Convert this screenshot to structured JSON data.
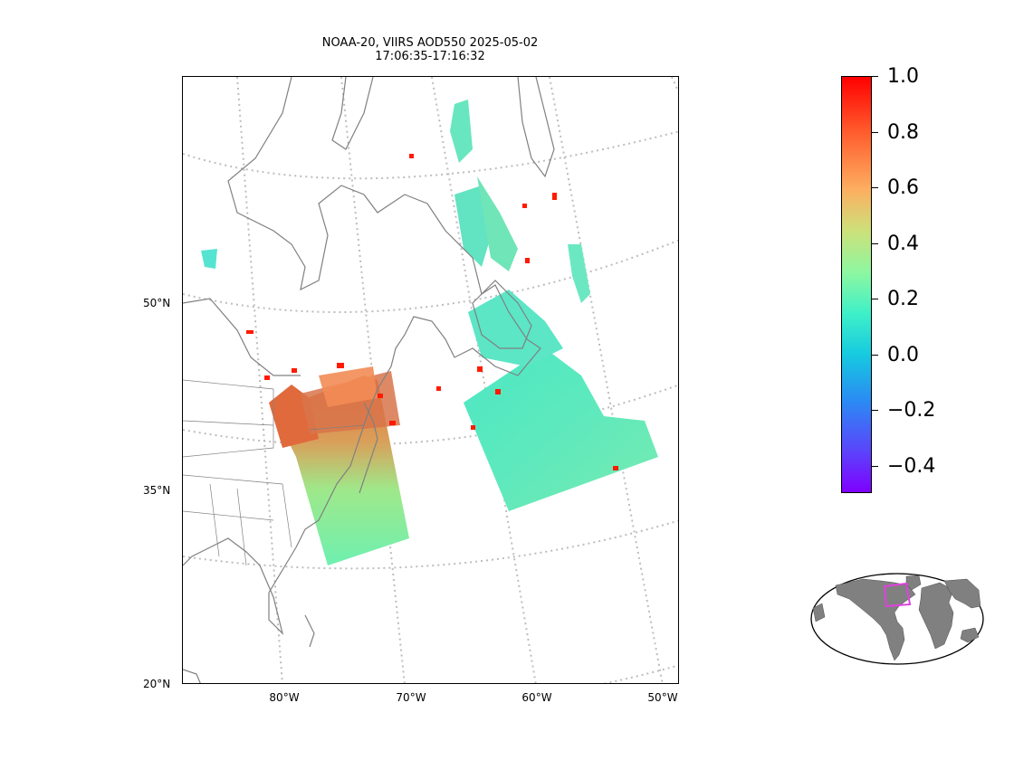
{
  "title": {
    "line1": "NOAA-20, VIIRS AOD550 2025-05-02",
    "line2": "17:06:35-17:16:32"
  },
  "map": {
    "projection": "lambert-conformal",
    "lat_labels": [
      "50°N",
      "35°N",
      "20°N"
    ],
    "lon_labels": [
      "80°W",
      "70°W",
      "60°W",
      "50°W"
    ],
    "gridline_color": "#bdbdbd",
    "coastline_color": "#808080"
  },
  "colorbar": {
    "colormap": "rainbow",
    "range": [
      -0.5,
      1.0
    ],
    "ticks": [
      "1.0",
      "0.8",
      "0.6",
      "0.4",
      "0.2",
      "0.0",
      "−0.2",
      "−0.4"
    ],
    "tick_values": [
      1.0,
      0.8,
      0.6,
      0.4,
      0.2,
      0.0,
      -0.2,
      -0.4
    ]
  },
  "inset": {
    "type": "world-locator-map",
    "land_color": "#808080",
    "highlight_color": "#e040e0"
  }
}
